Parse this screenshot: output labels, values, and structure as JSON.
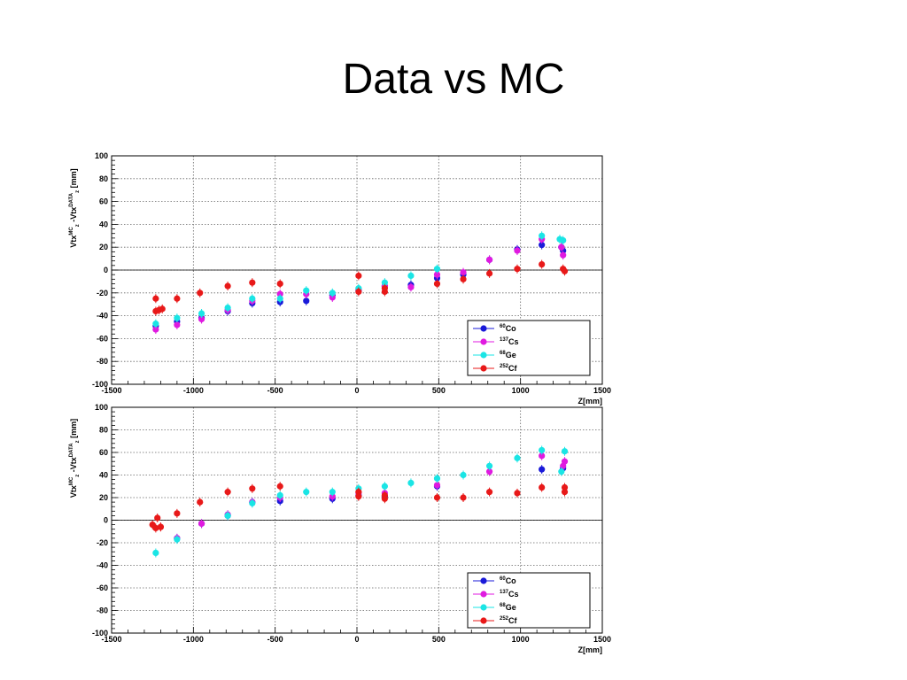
{
  "slide": {
    "title": "Data vs MC"
  },
  "chart_data": [
    {
      "type": "scatter",
      "title": "",
      "xlabel": "Z[mm]",
      "ylabel": {
        "base": "Vtx",
        "sup1": "MC",
        "sub1": "z",
        "mid": " -Vtx",
        "sup2": "DATA",
        "sub2": "z",
        "unit": " [mm]"
      },
      "xlim": [
        -1500,
        1500
      ],
      "ylim": [
        -100,
        100
      ],
      "xticks": [
        -1500,
        -1000,
        -500,
        0,
        500,
        1000,
        1500
      ],
      "yticks": [
        -100,
        -80,
        -60,
        -40,
        -20,
        0,
        20,
        40,
        60,
        80,
        100
      ],
      "grid": true,
      "zero_line": true,
      "legend_position": "bottom-right",
      "series": [
        {
          "name": "Co",
          "mass": "60",
          "color": "#1a1ad9",
          "x": [
            -1230,
            -1100,
            -950,
            -790,
            -640,
            -470,
            -310,
            -150,
            10,
            170,
            330,
            490,
            650,
            810,
            980,
            1130,
            1250,
            1260
          ],
          "y": [
            -49,
            -45,
            -42,
            -36,
            -29,
            -28,
            -27,
            -22,
            -18,
            -14,
            -13,
            -7,
            -4,
            9,
            18,
            22,
            20,
            17
          ]
        },
        {
          "name": "Cs",
          "mass": "137",
          "color": "#e01ae0",
          "x": [
            -1230,
            -1100,
            -950,
            -790,
            -640,
            -470,
            -310,
            -150,
            10,
            170,
            330,
            490,
            650,
            810,
            980,
            1130,
            1250,
            1260
          ],
          "y": [
            -52,
            -48,
            -43,
            -35,
            -27,
            -21,
            -21,
            -24,
            -17,
            -14,
            -15,
            -4,
            -2,
            9,
            17,
            27,
            20,
            13
          ]
        },
        {
          "name": "Ge",
          "mass": "68",
          "color": "#1ae5e5",
          "x": [
            -1230,
            -1100,
            -950,
            -790,
            -640,
            -470,
            -310,
            -150,
            10,
            170,
            330,
            490,
            1130,
            1240,
            1260
          ],
          "y": [
            -47,
            -42,
            -38,
            -33,
            -25,
            -25,
            -18,
            -20,
            -16,
            -11,
            -5,
            1,
            30,
            27,
            26
          ]
        },
        {
          "name": "Cf",
          "mass": "252",
          "color": "#e81919",
          "x": [
            -1230,
            -1230,
            -1210,
            -1190,
            -1100,
            -960,
            -790,
            -640,
            -470,
            10,
            10,
            170,
            170,
            490,
            650,
            810,
            980,
            1130,
            1260,
            1270
          ],
          "y": [
            -25,
            -36,
            -35,
            -34,
            -25,
            -20,
            -14,
            -11,
            -12,
            -5,
            -19,
            -19,
            -16,
            -12,
            -8,
            -3,
            1,
            5,
            1,
            -1
          ]
        }
      ]
    },
    {
      "type": "scatter",
      "title": "",
      "xlabel": "Z[mm]",
      "ylabel": {
        "base": "Vtx",
        "sup1": "MC",
        "sub1": "z",
        "mid": " -Vtx",
        "sup2": "DATA",
        "sub2": "z",
        "unit": " [mm]"
      },
      "xlim": [
        -1500,
        1500
      ],
      "ylim": [
        -100,
        100
      ],
      "xticks": [
        -1500,
        -1000,
        -500,
        0,
        500,
        1000,
        1500
      ],
      "yticks": [
        -100,
        -80,
        -60,
        -40,
        -20,
        0,
        20,
        40,
        60,
        80,
        100
      ],
      "grid": true,
      "zero_line": true,
      "legend_position": "bottom-right",
      "series": [
        {
          "name": "Co",
          "mass": "60",
          "color": "#1a1ad9",
          "x": [
            -1100,
            -950,
            -790,
            -640,
            -470,
            -150,
            10,
            170,
            490,
            1130,
            1260
          ],
          "y": [
            -16,
            -3,
            4,
            16,
            17,
            19,
            22,
            21,
            30,
            45,
            46
          ]
        },
        {
          "name": "Cs",
          "mass": "137",
          "color": "#e01ae0",
          "x": [
            -1100,
            -950,
            -790,
            -640,
            -470,
            -150,
            10,
            170,
            490,
            810,
            1130,
            1260,
            1270
          ],
          "y": [
            -16,
            -3,
            5,
            16,
            20,
            21,
            24,
            24,
            31,
            43,
            57,
            48,
            52
          ]
        },
        {
          "name": "Ge",
          "mass": "68",
          "color": "#1ae5e5",
          "x": [
            -1230,
            -1100,
            -790,
            -640,
            -470,
            -310,
            -150,
            10,
            170,
            330,
            490,
            650,
            810,
            980,
            1130,
            1250,
            1270
          ],
          "y": [
            -29,
            -17,
            4,
            15,
            22,
            25,
            25,
            28,
            30,
            33,
            37,
            40,
            48,
            55,
            62,
            43,
            61
          ]
        },
        {
          "name": "Cf",
          "mass": "252",
          "color": "#e81919",
          "x": [
            -1250,
            -1230,
            -1220,
            -1200,
            -1200,
            -1100,
            -960,
            -790,
            -640,
            -470,
            10,
            10,
            170,
            170,
            490,
            650,
            810,
            980,
            1130,
            1270,
            1270
          ],
          "y": [
            -4,
            -7,
            2,
            -6,
            -6,
            6,
            16,
            25,
            28,
            30,
            25,
            21,
            22,
            19,
            20,
            20,
            25,
            24,
            29,
            29,
            25
          ]
        }
      ]
    }
  ]
}
